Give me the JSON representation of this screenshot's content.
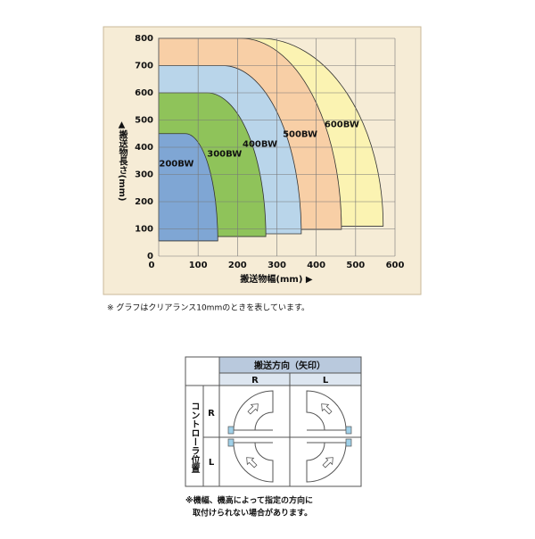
{
  "chart_data": {
    "type": "band",
    "x_label": "搬送物幅(mm) ▶",
    "y_label": "▲搬送物長さ(mm)",
    "xlim": [
      0,
      600
    ],
    "xticks": [
      0,
      100,
      200,
      300,
      400,
      500,
      600
    ],
    "ylim": [
      0,
      800
    ],
    "yticks": [
      0,
      100,
      200,
      300,
      400,
      500,
      600,
      700,
      800
    ],
    "grid": true,
    "series": [
      {
        "name": "600BW",
        "color": "#fbf3b2",
        "max_length": 800,
        "max_width": 570,
        "min_length": 110
      },
      {
        "name": "500BW",
        "color": "#f8cfa6",
        "max_length": 800,
        "max_width": 464,
        "min_length": 98
      },
      {
        "name": "400BW",
        "color": "#b9d5ea",
        "max_length": 700,
        "max_width": 362,
        "min_length": 82
      },
      {
        "name": "300BW",
        "color": "#8fc35a",
        "max_length": 600,
        "max_width": 272,
        "min_length": 72
      },
      {
        "name": "200BW",
        "color": "#7fa6d4",
        "max_length": 450,
        "max_width": 150,
        "min_length": 56
      }
    ]
  },
  "note": "※ グラフはクリアランス10mmのときを表しています。",
  "table": {
    "header": "搬送方向（矢印）",
    "columns": [
      "R",
      "L"
    ],
    "row_header": "コントローラ位置",
    "rows": [
      "R",
      "L"
    ]
  },
  "table_note": [
    "※機幅、機高によって指定の方向に",
    "取付けられない場合があります。"
  ]
}
